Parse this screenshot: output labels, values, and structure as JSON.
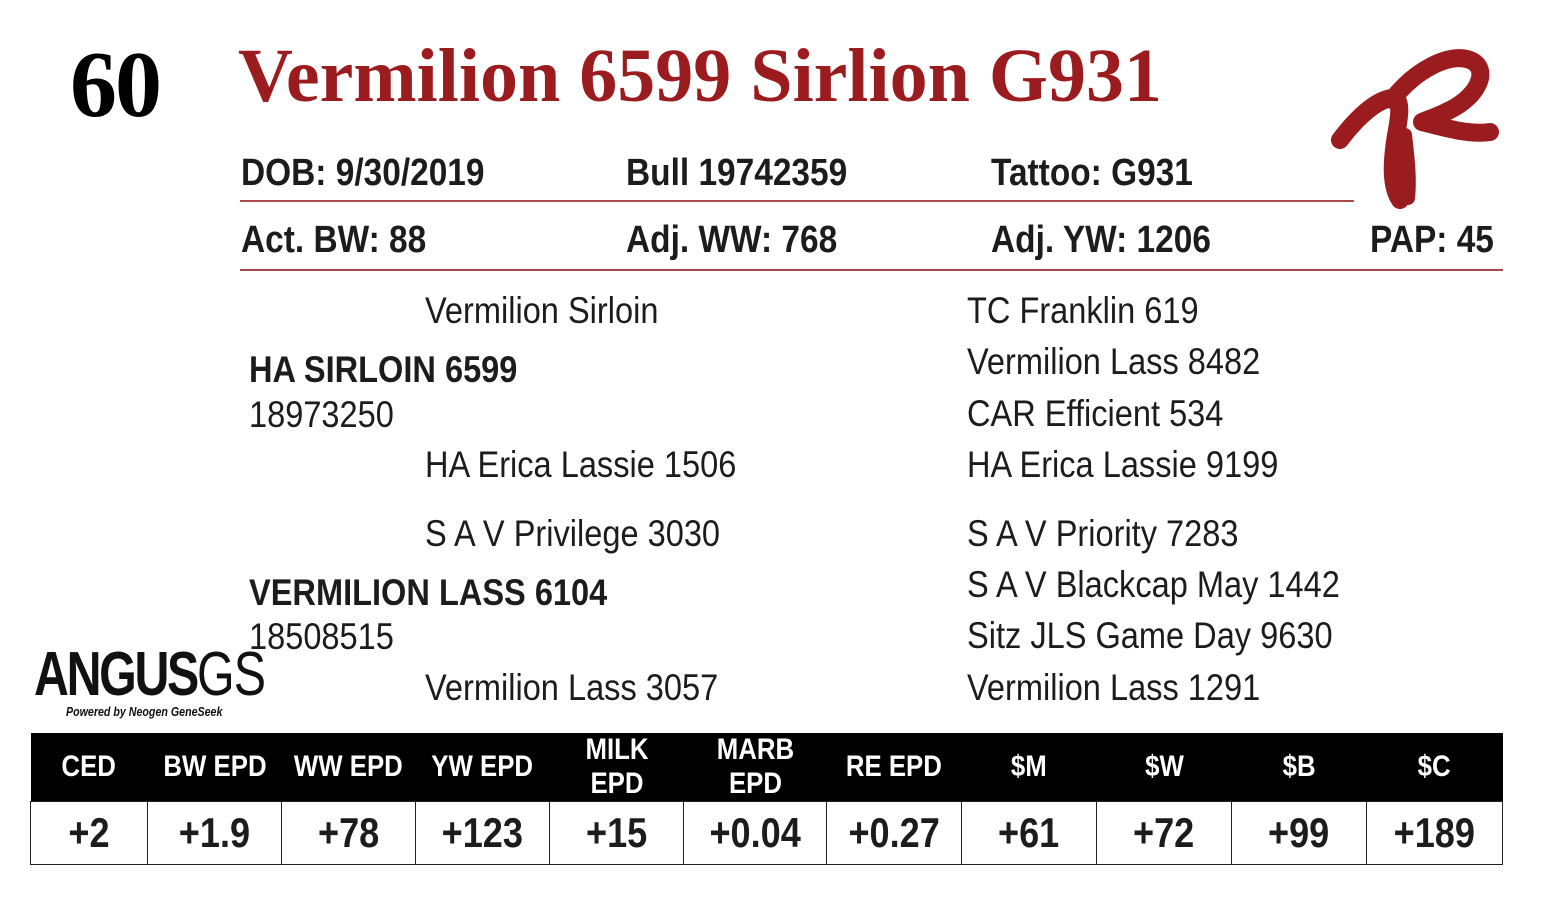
{
  "lot_number": "60",
  "animal_name": "Vermilion 6599 Sirlion G931",
  "info_row1": {
    "dob": "DOB:  9/30/2019",
    "sex_reg": "Bull   19742359",
    "tattoo": "Tattoo:  G931"
  },
  "info_row2": {
    "bw": "Act. BW: 88",
    "ww": "Adj. WW: 768",
    "yw": "Adj. YW: 1206",
    "pap": "PAP: 45"
  },
  "pedigree": {
    "sire": {
      "name": "HA SIRLOIN 6599",
      "reg": "18973250",
      "sire": "Vermilion Sirloin",
      "dam": "HA Erica  Lassie 1506",
      "sire_sire": "TC Franklin 619",
      "sire_dam": "Vermilion Lass 8482",
      "dam_sire": "CAR Efficient 534",
      "dam_dam": "HA Erica  Lassie 9199"
    },
    "dam": {
      "name": "VERMILION LASS 6104",
      "reg": "18508515",
      "sire": "S A V Privilege 3030",
      "dam": "Vermilion Lass 3057",
      "sire_sire": "S A V Priority 7283",
      "sire_dam": "S A V Blackcap May 1442",
      "dam_sire": "Sitz JLS Game Day 9630",
      "dam_dam": "Vermilion Lass 1291"
    }
  },
  "angus_logo": {
    "word": "ANGUS",
    "suffix": "GS",
    "tagline": "Powered by Neogen GeneSeek"
  },
  "epd_headers": [
    "CED",
    "BW EPD",
    "WW EPD",
    "YW EPD",
    "MILK EPD",
    "MARB EPD",
    "RE EPD",
    "$M",
    "$W",
    "$B",
    "$C"
  ],
  "epd_values": [
    "+2",
    "+1.9",
    "+78",
    "+123",
    "+15",
    "+0.04",
    "+0.27",
    "+61",
    "+72",
    "+99",
    "+189"
  ],
  "colors": {
    "brand_red": "#9b1c1f",
    "rule": "#a8484a"
  }
}
